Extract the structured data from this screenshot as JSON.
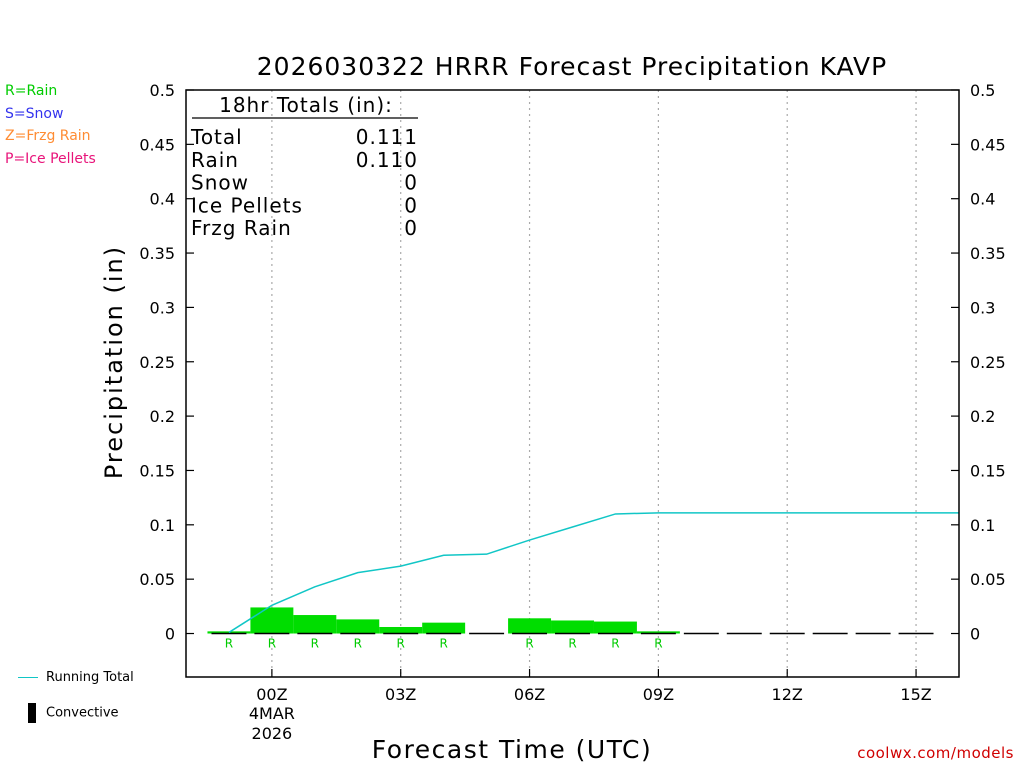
{
  "chart_data": {
    "type": "bar",
    "title": "2026030322 HRRR Forecast Precipitation KAVP",
    "xlabel": "Forecast Time (UTC)",
    "ylabel": "Precipitation (in)",
    "ylim": [
      -0.04,
      0.5
    ],
    "yticks": [
      0,
      0.05,
      0.1,
      0.15,
      0.2,
      0.25,
      0.3,
      0.35,
      0.4,
      0.45,
      0.5
    ],
    "ytick_labels": [
      "0",
      "0.05",
      "0.1",
      "0.15",
      "0.2",
      "0.25",
      "0.3",
      "0.35",
      "0.4",
      "0.45",
      "0.5"
    ],
    "xlim_hours": [
      -2,
      16
    ],
    "xticks": [
      {
        "hour": 0,
        "label": "00Z",
        "sub1": "4MAR",
        "sub2": "2026"
      },
      {
        "hour": 3,
        "label": "03Z",
        "sub1": "",
        "sub2": ""
      },
      {
        "hour": 6,
        "label": "06Z",
        "sub1": "",
        "sub2": ""
      },
      {
        "hour": 9,
        "label": "09Z",
        "sub1": "",
        "sub2": ""
      },
      {
        "hour": 12,
        "label": "12Z",
        "sub1": "",
        "sub2": ""
      },
      {
        "hour": 15,
        "label": "15Z",
        "sub1": "",
        "sub2": ""
      }
    ],
    "grid": true,
    "hourly_precip": [
      {
        "hour": -1,
        "value": 0.002,
        "ptype": "R"
      },
      {
        "hour": 0,
        "value": 0.024,
        "ptype": "R"
      },
      {
        "hour": 1,
        "value": 0.017,
        "ptype": "R"
      },
      {
        "hour": 2,
        "value": 0.013,
        "ptype": "R"
      },
      {
        "hour": 3,
        "value": 0.006,
        "ptype": "R"
      },
      {
        "hour": 4,
        "value": 0.01,
        "ptype": "R"
      },
      {
        "hour": 5,
        "value": 0.0,
        "ptype": ""
      },
      {
        "hour": 6,
        "value": 0.014,
        "ptype": "R"
      },
      {
        "hour": 7,
        "value": 0.012,
        "ptype": "R"
      },
      {
        "hour": 8,
        "value": 0.011,
        "ptype": "R"
      },
      {
        "hour": 9,
        "value": 0.002,
        "ptype": "R"
      },
      {
        "hour": 10,
        "value": 0.0,
        "ptype": ""
      },
      {
        "hour": 11,
        "value": 0.0,
        "ptype": ""
      },
      {
        "hour": 12,
        "value": 0.0,
        "ptype": ""
      },
      {
        "hour": 13,
        "value": 0.0,
        "ptype": ""
      },
      {
        "hour": 14,
        "value": 0.0,
        "ptype": ""
      },
      {
        "hour": 15,
        "value": 0.0,
        "ptype": ""
      }
    ],
    "convective_precip": "0 for all hours",
    "running_total": {
      "name": "Running Total",
      "hours": [
        -1,
        0,
        1,
        2,
        3,
        4,
        5,
        6,
        7,
        8,
        9,
        10,
        11,
        12,
        13,
        14,
        15,
        16
      ],
      "values": [
        0.001,
        0.026,
        0.043,
        0.056,
        0.062,
        0.072,
        0.073,
        0.086,
        0.098,
        0.11,
        0.111,
        0.111,
        0.111,
        0.111,
        0.111,
        0.111,
        0.111,
        0.111
      ]
    },
    "totals_box": {
      "header": "18hr Totals (in):",
      "rows": [
        {
          "label": "Total",
          "value": "0.111"
        },
        {
          "label": "Rain",
          "value": "0.110"
        },
        {
          "label": "Snow",
          "value": "0"
        },
        {
          "label": "Ice Pellets",
          "value": "0"
        },
        {
          "label": "Frzg Rain",
          "value": "0"
        }
      ]
    },
    "ptype_legend": [
      {
        "text": "R=Rain",
        "color": "#00cc00"
      },
      {
        "text": "S=Snow",
        "color": "#3333ee"
      },
      {
        "text": "Z=Frzg Rain",
        "color": "#ff8c33"
      },
      {
        "text": "P=Ice Pellets",
        "color": "#e8147a"
      }
    ],
    "legend": {
      "running_total": "Running Total",
      "convective": "Convective"
    },
    "colors": {
      "bar": "#00dd00",
      "line": "#11c6c6",
      "ptype_letter": "#00cc00",
      "credit": "#d00000"
    },
    "credit": "coolwx.com/models"
  }
}
